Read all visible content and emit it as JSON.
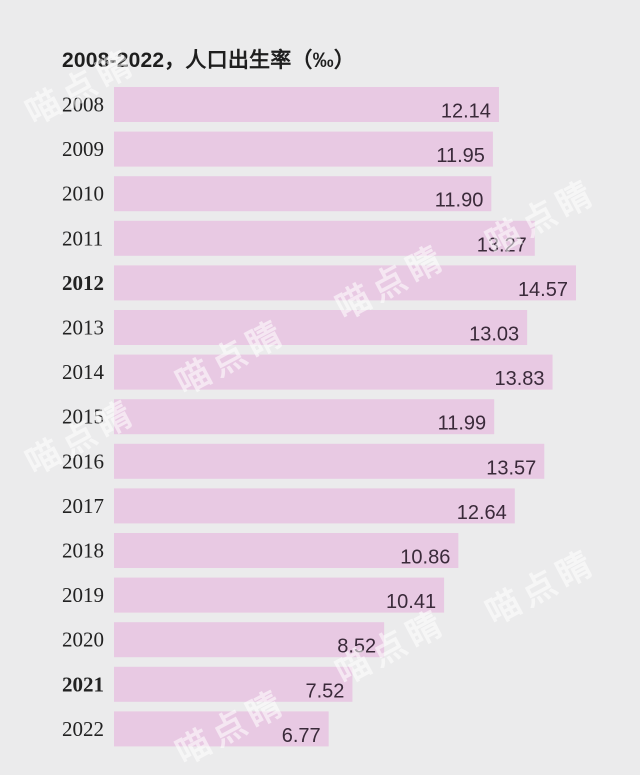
{
  "title": "2008-2022，人口出生率（‰）",
  "watermark_text": "喵点睛",
  "colors": {
    "bar": "#e8c9e3",
    "background": "#ebebec",
    "text": "#222222"
  },
  "chart_data": {
    "type": "bar",
    "orientation": "horizontal",
    "title": "2008-2022，人口出生率（‰）",
    "categories": [
      "2008",
      "2009",
      "2010",
      "2011",
      "2012",
      "2013",
      "2014",
      "2015",
      "2016",
      "2017",
      "2018",
      "2019",
      "2020",
      "2021",
      "2022"
    ],
    "values": [
      12.14,
      11.95,
      11.9,
      13.27,
      14.57,
      13.03,
      13.83,
      11.99,
      13.57,
      12.64,
      10.86,
      10.41,
      8.52,
      7.52,
      6.77
    ],
    "value_labels": [
      "12.14",
      "11.95",
      "11.90",
      "13.27",
      "14.57",
      "13.03",
      "13.83",
      "11.99",
      "13.57",
      "12.64",
      "10.86",
      "10.41",
      "8.52",
      "7.52",
      "6.77"
    ],
    "bold_categories": [
      "2012",
      "2021"
    ],
    "xlim": [
      0,
      14.57
    ],
    "grid": false,
    "legend": "none"
  }
}
